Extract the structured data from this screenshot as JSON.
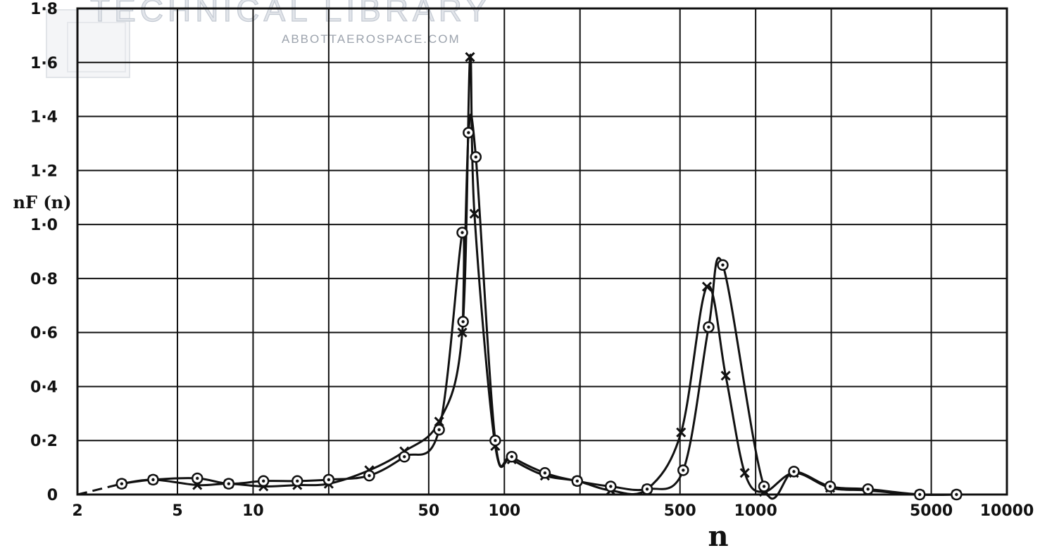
{
  "watermark": {
    "title": "TECHNICAL LIBRARY",
    "subtitle": "ABBOTTAEROSPACE.COM"
  },
  "chart_data": {
    "type": "line",
    "title": "",
    "xlabel": "n",
    "ylabel": "nF (n)",
    "xscale": "log",
    "xlim": [
      2,
      10000
    ],
    "ylim": [
      0,
      1.8
    ],
    "grid": true,
    "x_ticks": [
      2,
      5,
      10,
      50,
      100,
      500,
      1000,
      5000,
      10000
    ],
    "x_tick_labels": [
      "2",
      "5",
      "10",
      "50",
      "100",
      "500",
      "1000",
      "5000",
      "10000"
    ],
    "x_gridlines": [
      2,
      5,
      10,
      20,
      50,
      100,
      200,
      500,
      1000,
      2000,
      5000,
      10000
    ],
    "y_ticks": [
      0,
      0.2,
      0.4,
      0.6,
      0.8,
      1.0,
      1.2,
      1.4,
      1.6,
      1.8
    ],
    "y_tick_labels": [
      "0",
      "0·2",
      "0·4",
      "0·6",
      "0·8",
      "1·0",
      "1·2",
      "1·4",
      "1·6",
      "1·8"
    ],
    "series": [
      {
        "marker": "cross",
        "points": [
          [
            3,
            0.04
          ],
          [
            4,
            0.055
          ],
          [
            6,
            0.035
          ],
          [
            8,
            0.04
          ],
          [
            11,
            0.03
          ],
          [
            15,
            0.035
          ],
          [
            20,
            0.04
          ],
          [
            29,
            0.09
          ],
          [
            40,
            0.16
          ],
          [
            55,
            0.27
          ],
          [
            68,
            0.6
          ],
          [
            73,
            1.62
          ],
          [
            76,
            1.04
          ],
          [
            92,
            0.18
          ],
          [
            107,
            0.13
          ],
          [
            145,
            0.07
          ],
          [
            195,
            0.05
          ],
          [
            265,
            0.015
          ],
          [
            370,
            0.02
          ],
          [
            505,
            0.23
          ],
          [
            640,
            0.77
          ],
          [
            760,
            0.44
          ],
          [
            905,
            0.08
          ],
          [
            1080,
            0.01
          ],
          [
            1420,
            0.08
          ],
          [
            1980,
            0.025
          ],
          [
            2800,
            0.015
          ],
          [
            4500,
            0.0
          ],
          [
            6300,
            0.0
          ]
        ]
      },
      {
        "marker": "circle-dot",
        "points": [
          [
            3,
            0.04
          ],
          [
            4,
            0.055
          ],
          [
            6,
            0.06
          ],
          [
            8,
            0.04
          ],
          [
            11,
            0.05
          ],
          [
            15,
            0.05
          ],
          [
            20,
            0.055
          ],
          [
            29,
            0.07
          ],
          [
            40,
            0.14
          ],
          [
            55,
            0.24
          ],
          [
            68,
            0.97
          ],
          [
            68.5,
            0.64
          ],
          [
            72,
            1.34
          ],
          [
            77,
            1.25
          ],
          [
            92,
            0.2
          ],
          [
            107,
            0.14
          ],
          [
            145,
            0.08
          ],
          [
            195,
            0.05
          ],
          [
            265,
            0.03
          ],
          [
            370,
            0.02
          ],
          [
            515,
            0.09
          ],
          [
            650,
            0.62
          ],
          [
            740,
            0.85
          ],
          [
            1080,
            0.03
          ],
          [
            1420,
            0.085
          ],
          [
            1980,
            0.03
          ],
          [
            2800,
            0.02
          ],
          [
            4500,
            0.0
          ],
          [
            6300,
            0.0
          ]
        ]
      }
    ]
  }
}
